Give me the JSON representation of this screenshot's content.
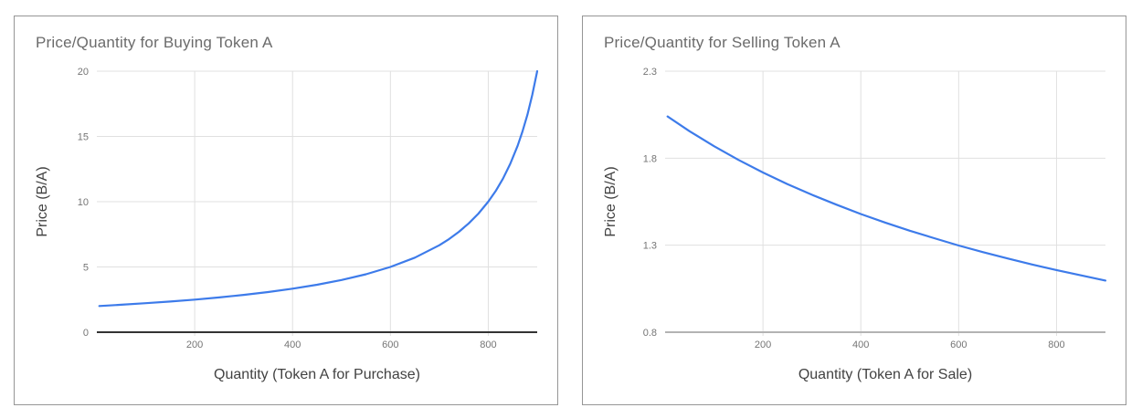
{
  "page": {
    "background": "#ffffff"
  },
  "colors": {
    "line": "#3d7bea",
    "grid": "#e0e0e0",
    "title": "#6b6b6b",
    "tick": "#757575",
    "axis_title": "#424242",
    "card_border": "#969696"
  },
  "chart_data": [
    {
      "type": "line",
      "title": "Price/Quantity for Buying Token A",
      "xlabel": "Quantity (Token A for Purchase)",
      "ylabel": "Price (B/A)",
      "xlim": [
        0,
        900
      ],
      "ylim": [
        0,
        20
      ],
      "x_ticks": [
        200,
        400,
        600,
        800
      ],
      "y_ticks": [
        0,
        5,
        10,
        15,
        20
      ],
      "grid": true,
      "legend": "none",
      "line_color": "#3d7bea",
      "axis_line_color": "#333333",
      "series": [
        {
          "name": "Price (B/A)",
          "x": [
            5,
            50,
            100,
            150,
            200,
            250,
            300,
            350,
            400,
            450,
            500,
            550,
            600,
            650,
            700,
            720,
            740,
            760,
            780,
            800,
            815,
            830,
            845,
            860,
            870,
            880,
            890,
            900
          ],
          "y": [
            2.01,
            2.105,
            2.222,
            2.353,
            2.5,
            2.667,
            2.857,
            3.077,
            3.333,
            3.636,
            4.0,
            4.444,
            5.0,
            5.714,
            6.667,
            7.143,
            7.692,
            8.333,
            9.091,
            10.0,
            10.811,
            11.765,
            12.903,
            14.286,
            15.385,
            16.667,
            18.182,
            20.0
          ]
        }
      ]
    },
    {
      "type": "line",
      "title": "Price/Quantity for Selling Token A",
      "xlabel": "Quantity (Token A for Sale)",
      "ylabel": "Price (B/A)",
      "xlim": [
        0,
        900
      ],
      "ylim": [
        0.8,
        2.3
      ],
      "x_ticks": [
        200,
        400,
        600,
        800
      ],
      "y_ticks": [
        0.8,
        1.3,
        1.8,
        2.3
      ],
      "grid": true,
      "legend": "none",
      "line_color": "#3d7bea",
      "axis_line_color": "#b3b3b3",
      "series": [
        {
          "name": "Price (B/A)",
          "x": [
            5,
            50,
            100,
            150,
            200,
            250,
            300,
            350,
            400,
            450,
            500,
            550,
            600,
            650,
            700,
            750,
            800,
            850,
            900
          ],
          "y": [
            2.04,
            1.955,
            1.869,
            1.79,
            1.718,
            1.651,
            1.59,
            1.533,
            1.479,
            1.43,
            1.383,
            1.34,
            1.298,
            1.26,
            1.224,
            1.189,
            1.157,
            1.127,
            1.097
          ]
        }
      ]
    }
  ]
}
